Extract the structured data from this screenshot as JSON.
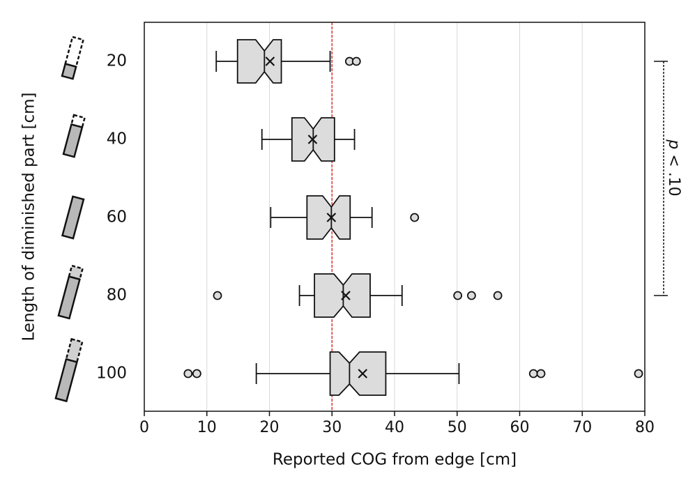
{
  "chart_data": {
    "type": "boxplot",
    "x_label": "Reported COG from edge [cm]",
    "y_label": "Length of diminished part [cm]",
    "categories": [
      "20",
      "40",
      "60",
      "80",
      "100"
    ],
    "boxes": [
      {
        "whislo": 11.5,
        "q1": 14.9,
        "notch_lo": 17.8,
        "med": 19.2,
        "notch_hi": 20.6,
        "q3": 21.9,
        "whishi": 29.7,
        "mean": 20.1,
        "fliers": [
          32.8,
          33.9
        ]
      },
      {
        "whislo": 18.8,
        "q1": 23.6,
        "notch_lo": 25.6,
        "med": 27.0,
        "notch_hi": 28.3,
        "q3": 30.4,
        "whishi": 33.6,
        "mean": 26.9,
        "fliers": []
      },
      {
        "whislo": 20.2,
        "q1": 26.0,
        "notch_lo": 28.5,
        "med": 29.9,
        "notch_hi": 31.2,
        "q3": 32.9,
        "whishi": 36.4,
        "mean": 29.9,
        "fliers": [
          43.2
        ]
      },
      {
        "whislo": 24.8,
        "q1": 27.2,
        "notch_lo": 30.3,
        "med": 31.8,
        "notch_hi": 33.2,
        "q3": 36.1,
        "whishi": 41.2,
        "mean": 32.2,
        "fliers": [
          11.7,
          50.1,
          52.3,
          56.5
        ]
      },
      {
        "whislo": 17.9,
        "q1": 29.7,
        "notch_lo": 31.1,
        "med": 32.8,
        "notch_hi": 34.4,
        "q3": 38.6,
        "whishi": 50.3,
        "mean": 34.9,
        "fliers": [
          7.0,
          8.4,
          62.2,
          63.4,
          79.0
        ]
      }
    ],
    "box_color": "#dcdcdc",
    "edge_color": "#111111",
    "xlim": [
      0,
      80
    ],
    "xticks": [
      0,
      10,
      20,
      30,
      40,
      50,
      60,
      70,
      80
    ],
    "grid": true,
    "reference_line": {
      "value": 30,
      "color": "#e0302a"
    },
    "bracket": {
      "from": "20",
      "to": "80",
      "label_italic": "p",
      "label": "< .10"
    }
  }
}
